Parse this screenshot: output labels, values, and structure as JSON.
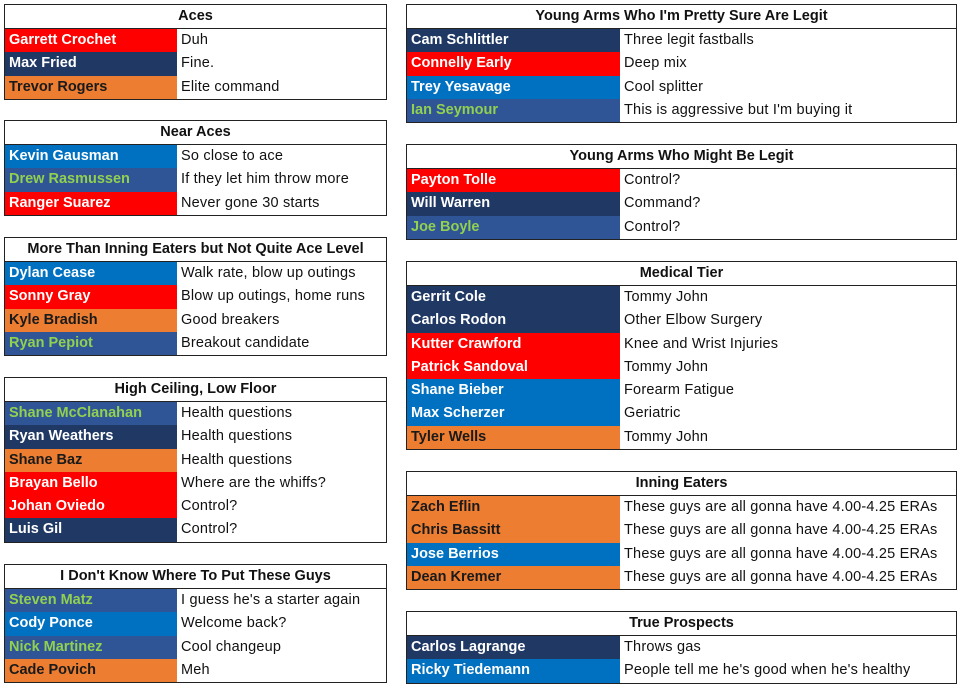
{
  "colors": {
    "r": "#ff0000",
    "n": "#203864",
    "o": "#ed7d31",
    "b": "#0070c0",
    "g": "#2f5597",
    "green_text": "#92d050"
  },
  "tables": [
    {
      "side": "left",
      "title": "Aces",
      "rows": [
        [
          "Garrett Crochet",
          "Duh",
          "r"
        ],
        [
          "Max Fried",
          "Fine.",
          "n"
        ],
        [
          "Trevor Rogers",
          "Elite command",
          "o"
        ]
      ]
    },
    {
      "side": "left",
      "title": "Near Aces",
      "rows": [
        [
          "Kevin Gausman",
          "So close to ace",
          "b"
        ],
        [
          "Drew Rasmussen",
          "If they let him throw more",
          "g"
        ],
        [
          "Ranger Suarez",
          "Never gone 30 starts",
          "r"
        ]
      ]
    },
    {
      "side": "left",
      "title": "More Than Inning Eaters but Not Quite Ace Level",
      "rows": [
        [
          "Dylan Cease",
          "Walk rate, blow up outings",
          "b"
        ],
        [
          "Sonny Gray",
          "Blow up outings, home runs",
          "r"
        ],
        [
          "Kyle Bradish",
          "Good breakers",
          "o"
        ],
        [
          "Ryan Pepiot",
          "Breakout candidate",
          "g"
        ]
      ]
    },
    {
      "side": "left",
      "title": "High Ceiling, Low Floor",
      "rows": [
        [
          "Shane McClanahan",
          "Health questions",
          "g"
        ],
        [
          "Ryan Weathers",
          "Health questions",
          "n"
        ],
        [
          "Shane Baz",
          "Health questions",
          "o"
        ],
        [
          "Brayan Bello",
          "Where are the whiffs?",
          "r"
        ],
        [
          "Johan Oviedo",
          "Control?",
          "r"
        ],
        [
          "Luis Gil",
          "Control?",
          "n"
        ]
      ]
    },
    {
      "side": "left",
      "title": "I Don't Know Where To Put These Guys",
      "rows": [
        [
          "Steven Matz",
          "I guess he's a starter again",
          "g"
        ],
        [
          "Cody Ponce",
          "Welcome back?",
          "b"
        ],
        [
          "Nick Martinez",
          "Cool changeup",
          "g"
        ],
        [
          "Cade Povich",
          "Meh",
          "o"
        ]
      ]
    },
    {
      "side": "right",
      "title": "Young Arms Who I'm Pretty Sure Are Legit",
      "rows": [
        [
          "Cam Schlittler",
          "Three legit fastballs",
          "n"
        ],
        [
          "Connelly Early",
          "Deep mix",
          "r"
        ],
        [
          "Trey Yesavage",
          "Cool splitter",
          "b"
        ],
        [
          "Ian Seymour",
          "This is aggressive but I'm buying it",
          "g"
        ]
      ]
    },
    {
      "side": "right",
      "title": "Young Arms Who Might Be Legit",
      "rows": [
        [
          "Payton Tolle",
          "Control?",
          "r"
        ],
        [
          "Will Warren",
          "Command?",
          "n"
        ],
        [
          "Joe Boyle",
          "Control?",
          "g"
        ]
      ]
    },
    {
      "side": "right",
      "title": "Medical Tier",
      "rows": [
        [
          "Gerrit Cole",
          "Tommy John",
          "n"
        ],
        [
          "Carlos Rodon",
          "Other Elbow Surgery",
          "n"
        ],
        [
          "Kutter Crawford",
          "Knee and Wrist Injuries",
          "r"
        ],
        [
          "Patrick Sandoval",
          "Tommy John",
          "r"
        ],
        [
          "Shane Bieber",
          "Forearm Fatigue",
          "b"
        ],
        [
          "Max Scherzer",
          "Geriatric",
          "b"
        ],
        [
          "Tyler Wells",
          "Tommy John",
          "o"
        ]
      ]
    },
    {
      "side": "right",
      "title": "Inning Eaters",
      "rows": [
        [
          "Zach Eflin",
          "These guys are all gonna have 4.00-4.25 ERAs",
          "o"
        ],
        [
          "Chris Bassitt",
          "These guys are all gonna have 4.00-4.25 ERAs",
          "o"
        ],
        [
          "Jose Berrios",
          "These guys are all gonna have 4.00-4.25 ERAs",
          "b"
        ],
        [
          "Dean Kremer",
          "These guys are all gonna have 4.00-4.25 ERAs",
          "o"
        ]
      ]
    },
    {
      "side": "right",
      "title": "True Prospects",
      "rows": [
        [
          "Carlos Lagrange",
          "Throws gas",
          "n"
        ],
        [
          "Ricky Tiedemann",
          "People tell me he's good when he's healthy",
          "b"
        ]
      ]
    }
  ]
}
